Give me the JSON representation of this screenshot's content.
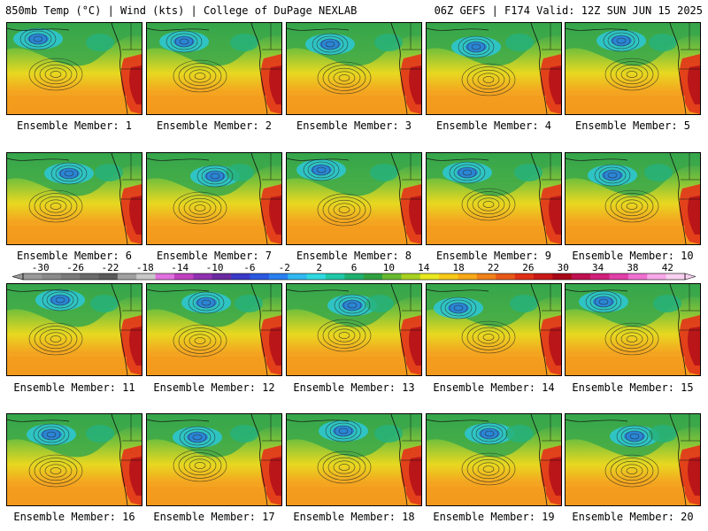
{
  "header": {
    "left": "850mb Temp (°C) | Wind (kts) | College of DuPage NEXLAB",
    "right": "06Z GEFS | F174 Valid: 12Z SUN JUN 15 2025"
  },
  "members": [
    "Ensemble Member: 1",
    "Ensemble Member: 2",
    "Ensemble Member: 3",
    "Ensemble Member: 4",
    "Ensemble Member: 5",
    "Ensemble Member: 6",
    "Ensemble Member: 7",
    "Ensemble Member: 8",
    "Ensemble Member: 9",
    "Ensemble Member: 10",
    "Ensemble Member: 11",
    "Ensemble Member: 12",
    "Ensemble Member: 13",
    "Ensemble Member: 14",
    "Ensemble Member: 15",
    "Ensemble Member: 16",
    "Ensemble Member: 17",
    "Ensemble Member: 18",
    "Ensemble Member: 19",
    "Ensemble Member: 20"
  ],
  "colorbar": {
    "ticks": [
      "-30",
      "-26",
      "-22",
      "-18",
      "-14",
      "-10",
      "-6",
      "-2",
      "2",
      "6",
      "10",
      "14",
      "18",
      "22",
      "26",
      "30",
      "34",
      "38",
      "42"
    ],
    "colors": [
      "#9a9a9a",
      "#8a8a8a",
      "#7a7a7a",
      "#6a6a6a",
      "#5a5a5a",
      "#a0a0a0",
      "#c8c8c8",
      "#e070e0",
      "#c040c0",
      "#9030b0",
      "#6a2aa0",
      "#3a3ac8",
      "#2a58e0",
      "#2a80f0",
      "#30b8f0",
      "#30d8e0",
      "#20c8a8",
      "#20b070",
      "#30a040",
      "#68b830",
      "#a8d020",
      "#e8e820",
      "#f8c818",
      "#f8a818",
      "#f08018",
      "#e85818",
      "#e03018",
      "#c81818",
      "#a80818",
      "#c01050",
      "#d0207a",
      "#e040a8",
      "#f070d0",
      "#f8a8e8",
      "#f8d0f0"
    ]
  }
}
